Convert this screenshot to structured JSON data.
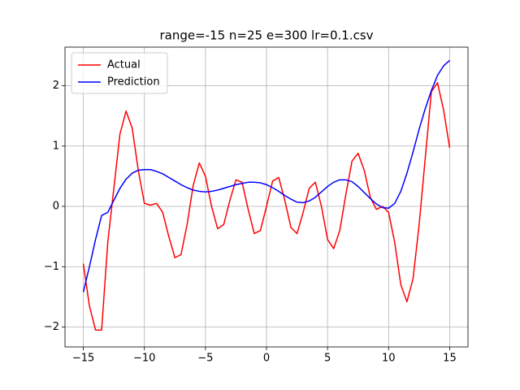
{
  "chart_data": {
    "type": "line",
    "title": "range=-15 n=25 e=300 lr=0.1.csv",
    "x": [
      -15,
      -14.5,
      -14,
      -13.5,
      -13,
      -12.5,
      -12,
      -11.5,
      -11,
      -10.5,
      -10,
      -9.5,
      -9,
      -8.5,
      -8,
      -7.5,
      -7,
      -6.5,
      -6,
      -5.5,
      -5,
      -4.5,
      -4,
      -3.5,
      -3,
      -2.5,
      -2,
      -1.5,
      -1,
      -0.5,
      0,
      0.5,
      1,
      1.5,
      2,
      2.5,
      3,
      3.5,
      4,
      4.5,
      5,
      5.5,
      6,
      6.5,
      7,
      7.5,
      8,
      8.5,
      9,
      9.5,
      10,
      10.5,
      11,
      11.5,
      12,
      12.5,
      13,
      13.5,
      14,
      14.5,
      15
    ],
    "series": [
      {
        "name": "Actual",
        "color": "#ff0000",
        "values": [
          -0.95,
          -1.65,
          -2.05,
          -2.05,
          -0.6,
          0.3,
          1.2,
          1.58,
          1.3,
          0.6,
          0.05,
          0.02,
          0.05,
          -0.1,
          -0.5,
          -0.85,
          -0.8,
          -0.3,
          0.35,
          0.72,
          0.5,
          0.0,
          -0.37,
          -0.3,
          0.1,
          0.44,
          0.4,
          -0.05,
          -0.45,
          -0.4,
          0.0,
          0.42,
          0.48,
          0.1,
          -0.35,
          -0.45,
          -0.1,
          0.3,
          0.4,
          0.0,
          -0.55,
          -0.7,
          -0.4,
          0.2,
          0.75,
          0.88,
          0.6,
          0.15,
          -0.05,
          0.0,
          -0.1,
          -0.6,
          -1.3,
          -1.58,
          -1.2,
          -0.3,
          0.8,
          1.9,
          2.05,
          1.6,
          0.97
        ]
      },
      {
        "name": "Prediction",
        "color": "#0000ff",
        "values": [
          -1.42,
          -1.0,
          -0.55,
          -0.15,
          -0.1,
          0.1,
          0.3,
          0.45,
          0.55,
          0.6,
          0.61,
          0.61,
          0.58,
          0.54,
          0.48,
          0.42,
          0.36,
          0.31,
          0.27,
          0.25,
          0.24,
          0.25,
          0.27,
          0.3,
          0.33,
          0.36,
          0.38,
          0.4,
          0.4,
          0.39,
          0.36,
          0.31,
          0.25,
          0.18,
          0.12,
          0.07,
          0.06,
          0.09,
          0.15,
          0.24,
          0.33,
          0.4,
          0.44,
          0.44,
          0.41,
          0.33,
          0.23,
          0.13,
          0.04,
          -0.02,
          -0.03,
          0.05,
          0.25,
          0.55,
          0.9,
          1.28,
          1.62,
          1.92,
          2.17,
          2.33,
          2.42
        ]
      }
    ],
    "xlim": [
      -16.5,
      16.5
    ],
    "ylim": [
      -2.33,
      2.64
    ],
    "xticks": [
      {
        "value": -15,
        "label": "−15"
      },
      {
        "value": -10,
        "label": "−10"
      },
      {
        "value": -5,
        "label": "−5"
      },
      0,
      5,
      10,
      15
    ],
    "yticks": [
      {
        "value": -2,
        "label": "−2"
      },
      {
        "value": -1,
        "label": "−1"
      },
      0,
      1,
      2
    ],
    "grid": true,
    "legend": "upper left"
  }
}
